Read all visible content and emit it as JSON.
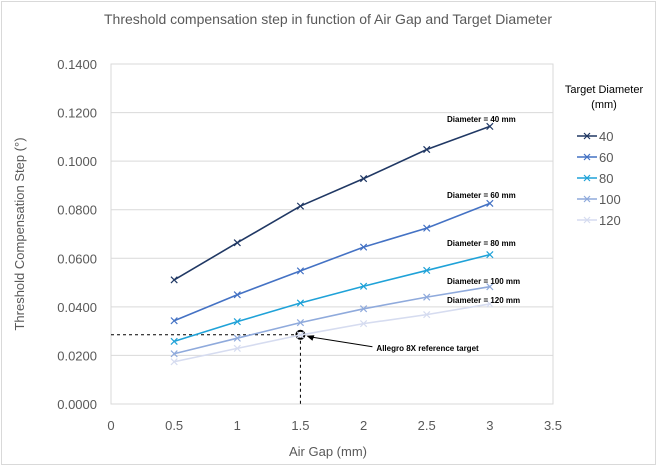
{
  "chart_data": {
    "type": "line",
    "title": "Threshold  compensation step in function of Air Gap and Target Diameter",
    "xlabel": "Air Gap (mm)",
    "ylabel": "Threshold Compensation Step (°)",
    "xlim": [
      0,
      3.5
    ],
    "ylim": [
      0,
      0.14
    ],
    "x_ticks": [
      "0",
      "0.5",
      "1",
      "1.5",
      "2",
      "2.5",
      "3",
      "3.5"
    ],
    "y_ticks": [
      "0.0000",
      "0.0200",
      "0.0400",
      "0.0600",
      "0.0800",
      "0.1000",
      "0.1200",
      "0.1400"
    ],
    "grid": "horizontal",
    "legend_title": "Target Diameter (mm)",
    "legend_title_lines": [
      "Target Diameter",
      "(mm)"
    ],
    "legend_position": "right",
    "x": [
      0.5,
      1,
      1.5,
      2,
      2.5,
      3
    ],
    "series": [
      {
        "name": "40",
        "color": "#203864",
        "values": [
          0.0511,
          0.0664,
          0.0815,
          0.0928,
          0.1048,
          0.1143
        ]
      },
      {
        "name": "60",
        "color": "#4472c4",
        "values": [
          0.0343,
          0.045,
          0.0548,
          0.0646,
          0.0724,
          0.0826
        ]
      },
      {
        "name": "80",
        "color": "#1fa2d8",
        "values": [
          0.0258,
          0.0339,
          0.0416,
          0.0485,
          0.055,
          0.0615
        ]
      },
      {
        "name": "100",
        "color": "#8faadc",
        "values": [
          0.0207,
          0.0271,
          0.0335,
          0.0392,
          0.044,
          0.0483
        ]
      },
      {
        "name": "120",
        "color": "#d6dcf0",
        "values": [
          0.0174,
          0.0229,
          0.0284,
          0.0331,
          0.0368,
          0.0412
        ]
      }
    ],
    "annotations": [
      {
        "text": "Diameter = 40 mm"
      },
      {
        "text": "Diameter = 60 mm"
      },
      {
        "text": "Diameter = 80 mm"
      },
      {
        "text": "Diameter = 100 mm"
      },
      {
        "text": "Diameter = 120 mm"
      }
    ],
    "reference_point": {
      "label": "Allegro 8X reference target",
      "x": 1.5,
      "y": 0.0285
    }
  }
}
